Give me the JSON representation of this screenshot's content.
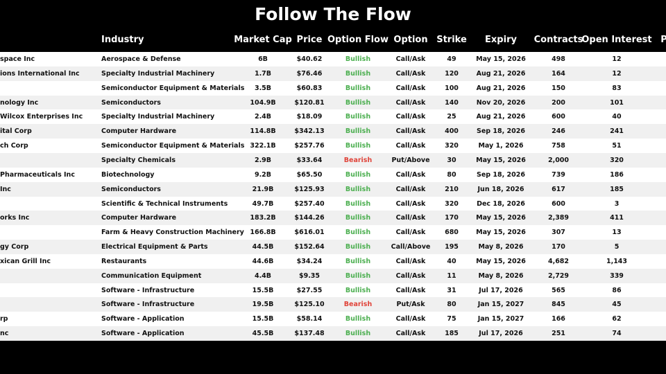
{
  "header": {
    "title": "Follow The Flow"
  },
  "table": {
    "headers": {
      "industry": "Industry",
      "market_cap": "Market Cap",
      "price": "Price",
      "option_flow": "Option Flow",
      "option": "Option",
      "strike": "Strike",
      "expiry": "Expiry",
      "contracts": "Contracts",
      "open_interest": "Open Interest",
      "p": "P"
    },
    "flow_colors": {
      "Bullish": "#4caf50",
      "Bearish": "#e0443a"
    },
    "rows": [
      {
        "name": "space Inc",
        "industry": "Aerospace & Defense",
        "market_cap": "6B",
        "price": "$40.62",
        "option_flow": "Bullish",
        "option": "Call/Ask",
        "strike": "49",
        "expiry": "May 15, 2026",
        "contracts": "498",
        "open_interest": "12"
      },
      {
        "name": "ions International Inc",
        "industry": "Specialty Industrial Machinery",
        "market_cap": "1.7B",
        "price": "$76.46",
        "option_flow": "Bullish",
        "option": "Call/Ask",
        "strike": "120",
        "expiry": "Aug 21, 2026",
        "contracts": "164",
        "open_interest": "12"
      },
      {
        "industry": "Semiconductor Equipment & Materials",
        "market_cap": "3.5B",
        "price": "$60.83",
        "option_flow": "Bullish",
        "option": "Call/Ask",
        "strike": "100",
        "expiry": "Aug 21, 2026",
        "contracts": "150",
        "open_interest": "83"
      },
      {
        "name": "nology Inc",
        "industry": "Semiconductors",
        "market_cap": "104.9B",
        "price": "$120.81",
        "option_flow": "Bullish",
        "option": "Call/Ask",
        "strike": "140",
        "expiry": "Nov 20, 2026",
        "contracts": "200",
        "open_interest": "101"
      },
      {
        "name": "Wilcox Enterprises Inc",
        "industry": "Specialty Industrial Machinery",
        "market_cap": "2.4B",
        "price": "$18.09",
        "option_flow": "Bullish",
        "option": "Call/Ask",
        "strike": "25",
        "expiry": "Aug 21, 2026",
        "contracts": "600",
        "open_interest": "40"
      },
      {
        "name": "ital Corp",
        "industry": "Computer Hardware",
        "market_cap": "114.8B",
        "price": "$342.13",
        "option_flow": "Bullish",
        "option": "Call/Ask",
        "strike": "400",
        "expiry": "Sep 18, 2026",
        "contracts": "246",
        "open_interest": "241"
      },
      {
        "name": "ch Corp",
        "industry": "Semiconductor Equipment & Materials",
        "market_cap": "322.1B",
        "price": "$257.76",
        "option_flow": "Bullish",
        "option": "Call/Ask",
        "strike": "320",
        "expiry": "May 1, 2026",
        "contracts": "758",
        "open_interest": "51"
      },
      {
        "industry": "Specialty Chemicals",
        "market_cap": "2.9B",
        "price": "$33.64",
        "option_flow": "Bearish",
        "option": "Put/Above",
        "strike": "30",
        "expiry": "May 15, 2026",
        "contracts": "2,000",
        "open_interest": "320"
      },
      {
        "name": "Pharmaceuticals Inc",
        "industry": "Biotechnology",
        "market_cap": "9.2B",
        "price": "$65.50",
        "option_flow": "Bullish",
        "option": "Call/Ask",
        "strike": "80",
        "expiry": "Sep 18, 2026",
        "contracts": "739",
        "open_interest": "186"
      },
      {
        "name": "Inc",
        "industry": "Semiconductors",
        "market_cap": "21.9B",
        "price": "$125.93",
        "option_flow": "Bullish",
        "option": "Call/Ask",
        "strike": "210",
        "expiry": "Jun 18, 2026",
        "contracts": "617",
        "open_interest": "185"
      },
      {
        "industry": "Scientific & Technical Instruments",
        "market_cap": "49.7B",
        "price": "$257.40",
        "option_flow": "Bullish",
        "option": "Call/Ask",
        "strike": "320",
        "expiry": "Dec 18, 2026",
        "contracts": "600",
        "open_interest": "3"
      },
      {
        "name": "orks Inc",
        "industry": "Computer Hardware",
        "market_cap": "183.2B",
        "price": "$144.26",
        "option_flow": "Bullish",
        "option": "Call/Ask",
        "strike": "170",
        "expiry": "May 15, 2026",
        "contracts": "2,389",
        "open_interest": "411"
      },
      {
        "industry": "Farm & Heavy Construction Machinery",
        "market_cap": "166.8B",
        "price": "$616.01",
        "option_flow": "Bullish",
        "option": "Call/Ask",
        "strike": "680",
        "expiry": "May 15, 2026",
        "contracts": "307",
        "open_interest": "13"
      },
      {
        "name": "gy Corp",
        "industry": "Electrical Equipment & Parts",
        "market_cap": "44.5B",
        "price": "$152.64",
        "option_flow": "Bullish",
        "option": "Call/Above",
        "strike": "195",
        "expiry": "May 8, 2026",
        "contracts": "170",
        "open_interest": "5"
      },
      {
        "name": "xican Grill Inc",
        "industry": "Restaurants",
        "market_cap": "44.6B",
        "price": "$34.24",
        "option_flow": "Bullish",
        "option": "Call/Ask",
        "strike": "40",
        "expiry": "May 15, 2026",
        "contracts": "4,682",
        "open_interest": "1,143"
      },
      {
        "industry": "Communication Equipment",
        "market_cap": "4.4B",
        "price": "$9.35",
        "option_flow": "Bullish",
        "option": "Call/Ask",
        "strike": "11",
        "expiry": "May 8, 2026",
        "contracts": "2,729",
        "open_interest": "339"
      },
      {
        "industry": "Software - Infrastructure",
        "market_cap": "15.5B",
        "price": "$27.55",
        "option_flow": "Bullish",
        "option": "Call/Ask",
        "strike": "31",
        "expiry": "Jul 17, 2026",
        "contracts": "565",
        "open_interest": "86"
      },
      {
        "industry": "Software - Infrastructure",
        "market_cap": "19.5B",
        "price": "$125.10",
        "option_flow": "Bearish",
        "option": "Put/Ask",
        "strike": "80",
        "expiry": "Jan 15, 2027",
        "contracts": "845",
        "open_interest": "45"
      },
      {
        "name": "rp",
        "industry": "Software - Application",
        "market_cap": "15.5B",
        "price": "$58.14",
        "option_flow": "Bullish",
        "option": "Call/Ask",
        "strike": "75",
        "expiry": "Jan 15, 2027",
        "contracts": "166",
        "open_interest": "62"
      },
      {
        "name": "nc",
        "industry": "Software - Application",
        "market_cap": "45.5B",
        "price": "$137.48",
        "option_flow": "Bullish",
        "option": "Call/Ask",
        "strike": "185",
        "expiry": "Jul 17, 2026",
        "contracts": "251",
        "open_interest": "74"
      }
    ]
  }
}
